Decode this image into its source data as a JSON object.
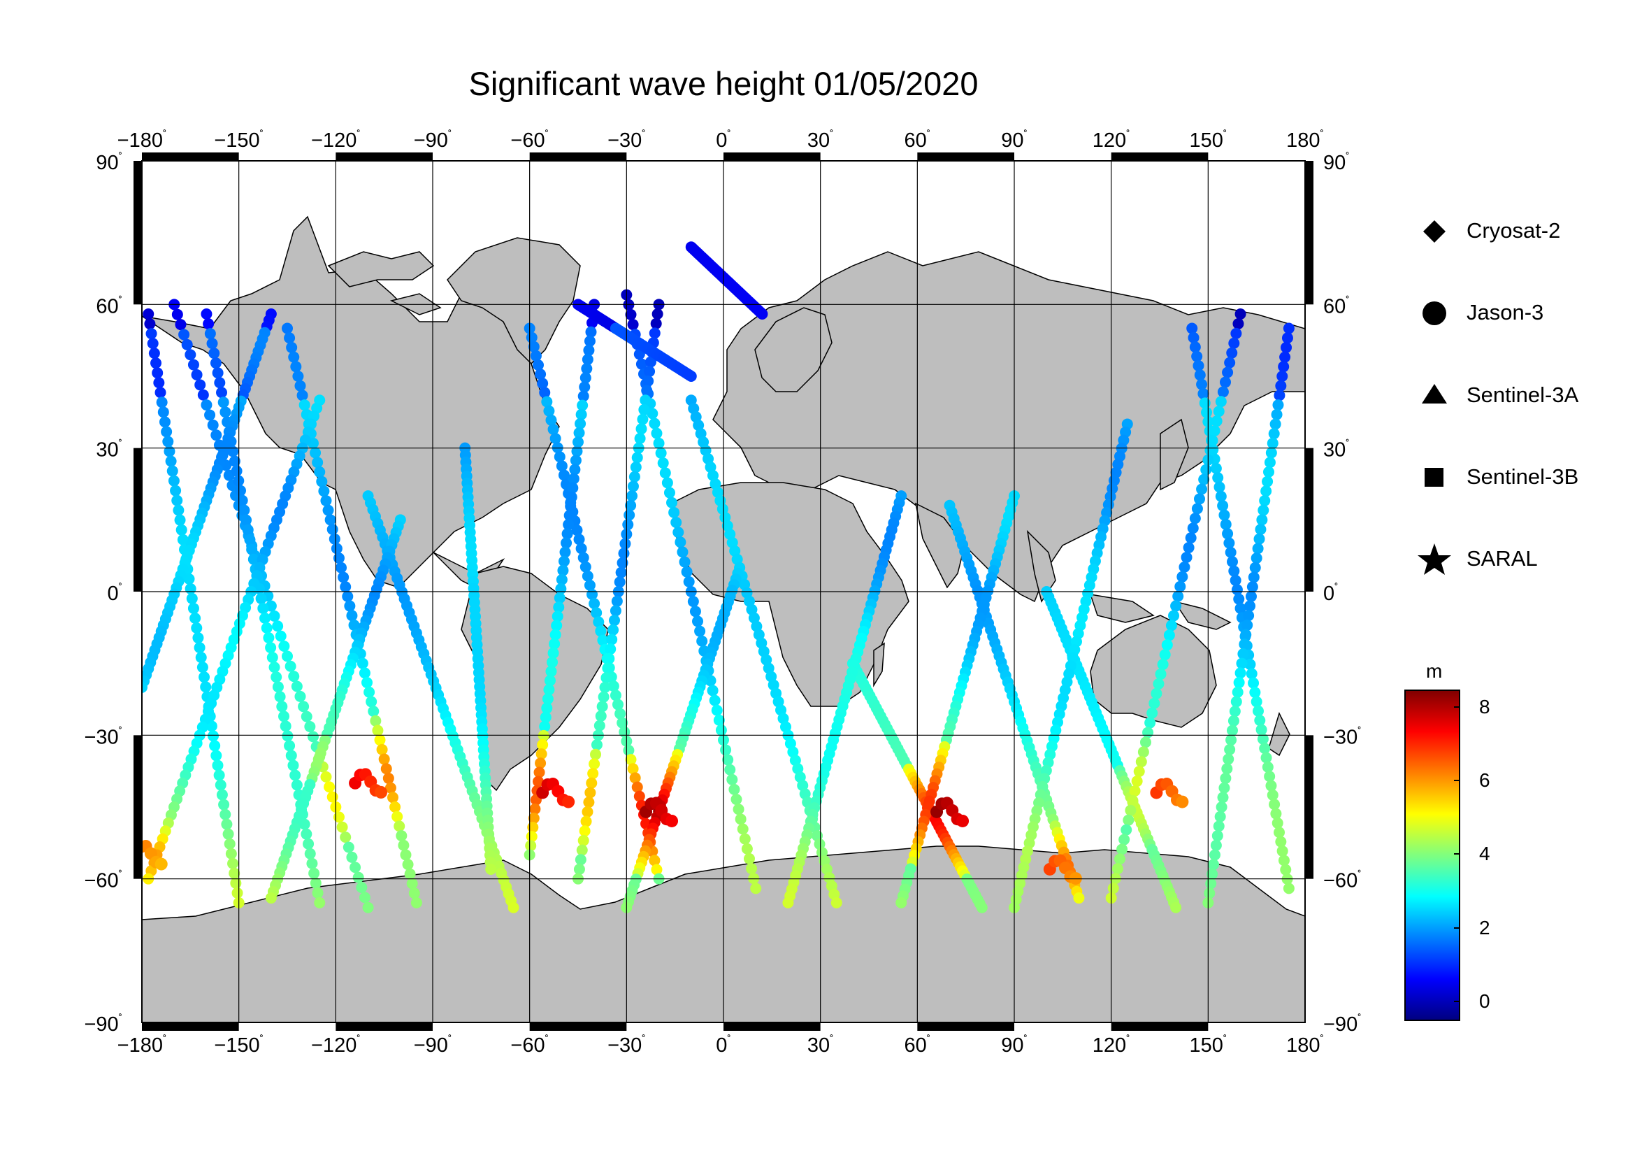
{
  "map": {
    "title": "Significant wave height 01/05/2020",
    "projection": "equirectangular",
    "extent": {
      "lon": [
        -180,
        180
      ],
      "lat": [
        -90,
        90
      ]
    },
    "lon_ticks": [
      -180,
      -150,
      -120,
      -90,
      -60,
      -30,
      0,
      30,
      60,
      90,
      120,
      150,
      180
    ],
    "lat_ticks": [
      90,
      60,
      30,
      0,
      -30,
      -60,
      -90
    ],
    "lon_tick_labels": [
      "−180",
      "−150",
      "−120",
      "−90",
      "−60",
      "−30",
      "0",
      "30",
      "60",
      "90",
      "120",
      "150",
      "180"
    ],
    "lat_tick_labels": [
      "90",
      "60",
      "30",
      "0",
      "−30",
      "−60",
      "−90"
    ],
    "degree_symbol": "˚",
    "land_color": "#bebebe",
    "ocean_color": "#ffffff"
  },
  "legend": {
    "items": [
      {
        "name": "Cryosat-2",
        "symbol": "diamond"
      },
      {
        "name": "Jason-3",
        "symbol": "circle"
      },
      {
        "name": "Sentinel-3A",
        "symbol": "triangle"
      },
      {
        "name": "Sentinel-3B",
        "symbol": "square"
      },
      {
        "name": "SARAL",
        "symbol": "star"
      }
    ]
  },
  "colorbar": {
    "unit": "m",
    "range": [
      -0.5,
      8.5
    ],
    "ticks": [
      "8",
      "6",
      "4",
      "2",
      "0"
    ],
    "tick_values": [
      8,
      6,
      4,
      2,
      0
    ],
    "colormap": [
      "#00007f",
      "#0000ff",
      "#007fff",
      "#00ffff",
      "#7fff7f",
      "#ffff00",
      "#ff7f00",
      "#ff0000",
      "#7f0000"
    ]
  },
  "chart_data": {
    "type": "scatter",
    "title": "Significant wave height 01/05/2020",
    "xlabel": "",
    "ylabel": "",
    "xlim": [
      -180,
      180
    ],
    "ylim": [
      -90,
      90
    ],
    "color_unit": "m",
    "tracks": [
      {
        "lon0": -178,
        "lat0": 58,
        "lon1": -150,
        "lat1": -65
      },
      {
        "lon0": -170,
        "lat0": 60,
        "lon1": -110,
        "lat1": -66
      },
      {
        "lon0": -160,
        "lat0": 58,
        "lon1": -125,
        "lat1": -65
      },
      {
        "lon0": -140,
        "lat0": 58,
        "lon1": -180,
        "lat1": -20
      },
      {
        "lon0": -135,
        "lat0": 55,
        "lon1": -95,
        "lat1": -65
      },
      {
        "lon0": -125,
        "lat0": 40,
        "lon1": -178,
        "lat1": -60
      },
      {
        "lon0": -110,
        "lat0": 20,
        "lon1": -65,
        "lat1": -66
      },
      {
        "lon0": -100,
        "lat0": 15,
        "lon1": -140,
        "lat1": -64
      },
      {
        "lon0": -80,
        "lat0": 30,
        "lon1": -72,
        "lat1": -58
      },
      {
        "lon0": -60,
        "lat0": 55,
        "lon1": -20,
        "lat1": -60
      },
      {
        "lon0": -40,
        "lat0": 60,
        "lon1": -60,
        "lat1": -55
      },
      {
        "lon0": -30,
        "lat0": 62,
        "lon1": 10,
        "lat1": -62
      },
      {
        "lon0": -20,
        "lat0": 60,
        "lon1": -45,
        "lat1": -60
      },
      {
        "lon0": -10,
        "lat0": 40,
        "lon1": 35,
        "lat1": -65
      },
      {
        "lon0": 5,
        "lat0": 5,
        "lon1": -30,
        "lat1": -66
      },
      {
        "lon0": 40,
        "lat0": -15,
        "lon1": 80,
        "lat1": -66
      },
      {
        "lon0": 55,
        "lat0": 20,
        "lon1": 20,
        "lat1": -65
      },
      {
        "lon0": 70,
        "lat0": 18,
        "lon1": 110,
        "lat1": -64
      },
      {
        "lon0": 90,
        "lat0": 20,
        "lon1": 55,
        "lat1": -65
      },
      {
        "lon0": 100,
        "lat0": 0,
        "lon1": 140,
        "lat1": -66
      },
      {
        "lon0": 125,
        "lat0": 35,
        "lon1": 90,
        "lat1": -66
      },
      {
        "lon0": 145,
        "lat0": 55,
        "lon1": 175,
        "lat1": -62
      },
      {
        "lon0": 160,
        "lat0": 58,
        "lon1": 120,
        "lat1": -64
      },
      {
        "lon0": 175,
        "lat0": 55,
        "lon1": 150,
        "lat1": -65
      },
      {
        "lon0": -45,
        "lat0": 60,
        "lon1": -10,
        "lat1": 45
      },
      {
        "lon0": -10,
        "lat0": 72,
        "lon1": 12,
        "lat1": 58
      }
    ],
    "high_wave_regions": [
      {
        "lon": -110,
        "lat": -40,
        "hs": 7.5
      },
      {
        "lon": -52,
        "lat": -42,
        "hs": 7.8
      },
      {
        "lon": -20,
        "lat": -46,
        "hs": 8.2
      },
      {
        "lon": 70,
        "lat": -46,
        "hs": 8.3
      },
      {
        "lon": 105,
        "lat": -58,
        "hs": 6.8
      },
      {
        "lon": 138,
        "lat": -42,
        "hs": 6.9
      },
      {
        "lon": -178,
        "lat": -55,
        "hs": 6.5
      }
    ]
  }
}
